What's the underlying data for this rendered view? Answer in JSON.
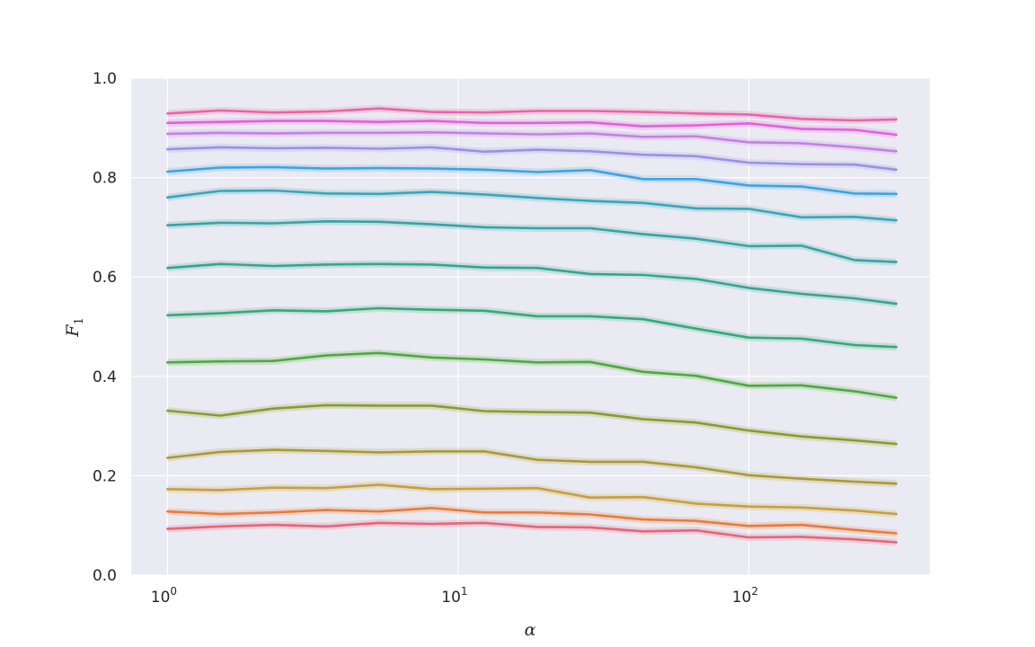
{
  "chart_data": {
    "type": "line",
    "style": "seaborn-darkgrid",
    "background_color": "#EAEAF2",
    "grid": true,
    "grid_color": "#FFFFFF",
    "x_scale": "log",
    "xlabel": "α",
    "ylabel": "F",
    "ylabel_subscript": "1",
    "xlim": [
      0.75,
      420
    ],
    "ylim": [
      0.0,
      1.0
    ],
    "y_ticks": [
      0.0,
      0.2,
      0.4,
      0.6,
      0.8,
      1.0
    ],
    "y_tick_labels": [
      "0.0",
      "0.2",
      "0.4",
      "0.6",
      "0.8",
      "1.0"
    ],
    "x_ticks": [
      {
        "value": 1,
        "base": "10",
        "exp": "0"
      },
      {
        "value": 10,
        "base": "10",
        "exp": "1"
      },
      {
        "value": 100,
        "base": "10",
        "exp": "2"
      }
    ],
    "x": [
      1.0,
      1.52,
      2.31,
      3.51,
      5.34,
      8.11,
      12.33,
      18.74,
      28.48,
      43.29,
      65.79,
      100.0,
      152.0,
      231.0,
      322.0
    ],
    "series": [
      {
        "color": "#E8647A",
        "values": [
          0.093,
          0.098,
          0.101,
          0.098,
          0.105,
          0.103,
          0.105,
          0.097,
          0.096,
          0.088,
          0.09,
          0.076,
          0.077,
          0.072,
          0.066
        ]
      },
      {
        "color": "#EA7B39",
        "values": [
          0.128,
          0.123,
          0.126,
          0.131,
          0.128,
          0.135,
          0.126,
          0.126,
          0.122,
          0.112,
          0.109,
          0.099,
          0.101,
          0.091,
          0.084
        ]
      },
      {
        "color": "#C8A03A",
        "values": [
          0.173,
          0.171,
          0.176,
          0.175,
          0.182,
          0.173,
          0.174,
          0.175,
          0.156,
          0.157,
          0.144,
          0.138,
          0.136,
          0.13,
          0.123
        ]
      },
      {
        "color": "#AA9A35",
        "values": [
          0.236,
          0.248,
          0.252,
          0.25,
          0.247,
          0.249,
          0.249,
          0.232,
          0.228,
          0.228,
          0.217,
          0.201,
          0.194,
          0.188,
          0.184
        ]
      },
      {
        "color": "#8C9A2E",
        "values": [
          0.331,
          0.321,
          0.335,
          0.342,
          0.341,
          0.341,
          0.33,
          0.328,
          0.327,
          0.314,
          0.307,
          0.291,
          0.279,
          0.271,
          0.264
        ]
      },
      {
        "color": "#4DAA3C",
        "values": [
          0.428,
          0.43,
          0.431,
          0.442,
          0.447,
          0.438,
          0.434,
          0.428,
          0.429,
          0.409,
          0.401,
          0.381,
          0.382,
          0.37,
          0.357
        ]
      },
      {
        "color": "#36A87A",
        "values": [
          0.523,
          0.527,
          0.533,
          0.531,
          0.537,
          0.534,
          0.532,
          0.521,
          0.521,
          0.515,
          0.496,
          0.478,
          0.476,
          0.463,
          0.459
        ]
      },
      {
        "color": "#35A493",
        "values": [
          0.618,
          0.626,
          0.622,
          0.625,
          0.626,
          0.625,
          0.619,
          0.618,
          0.606,
          0.604,
          0.596,
          0.578,
          0.566,
          0.557,
          0.546
        ]
      },
      {
        "color": "#37A3A3",
        "values": [
          0.704,
          0.709,
          0.708,
          0.712,
          0.711,
          0.706,
          0.7,
          0.698,
          0.698,
          0.686,
          0.677,
          0.662,
          0.663,
          0.634,
          0.63
        ]
      },
      {
        "color": "#3AA6B6",
        "values": [
          0.76,
          0.773,
          0.774,
          0.768,
          0.767,
          0.771,
          0.766,
          0.759,
          0.753,
          0.749,
          0.738,
          0.737,
          0.72,
          0.721,
          0.714
        ]
      },
      {
        "color": "#3EA3E1",
        "values": [
          0.812,
          0.82,
          0.821,
          0.818,
          0.819,
          0.818,
          0.816,
          0.811,
          0.815,
          0.797,
          0.797,
          0.784,
          0.782,
          0.768,
          0.767
        ]
      },
      {
        "color": "#9C8FE8",
        "values": [
          0.857,
          0.861,
          0.859,
          0.86,
          0.858,
          0.861,
          0.852,
          0.856,
          0.853,
          0.846,
          0.843,
          0.83,
          0.827,
          0.826,
          0.816
        ]
      },
      {
        "color": "#C77FE6",
        "values": [
          0.888,
          0.89,
          0.889,
          0.89,
          0.89,
          0.891,
          0.889,
          0.887,
          0.889,
          0.882,
          0.883,
          0.871,
          0.869,
          0.861,
          0.853
        ]
      },
      {
        "color": "#E65FDC",
        "values": [
          0.91,
          0.912,
          0.914,
          0.914,
          0.912,
          0.914,
          0.91,
          0.91,
          0.911,
          0.903,
          0.905,
          0.909,
          0.898,
          0.896,
          0.886
        ]
      },
      {
        "color": "#EC63A8",
        "values": [
          0.929,
          0.935,
          0.931,
          0.933,
          0.939,
          0.932,
          0.931,
          0.934,
          0.934,
          0.932,
          0.929,
          0.927,
          0.918,
          0.915,
          0.917
        ]
      }
    ]
  }
}
